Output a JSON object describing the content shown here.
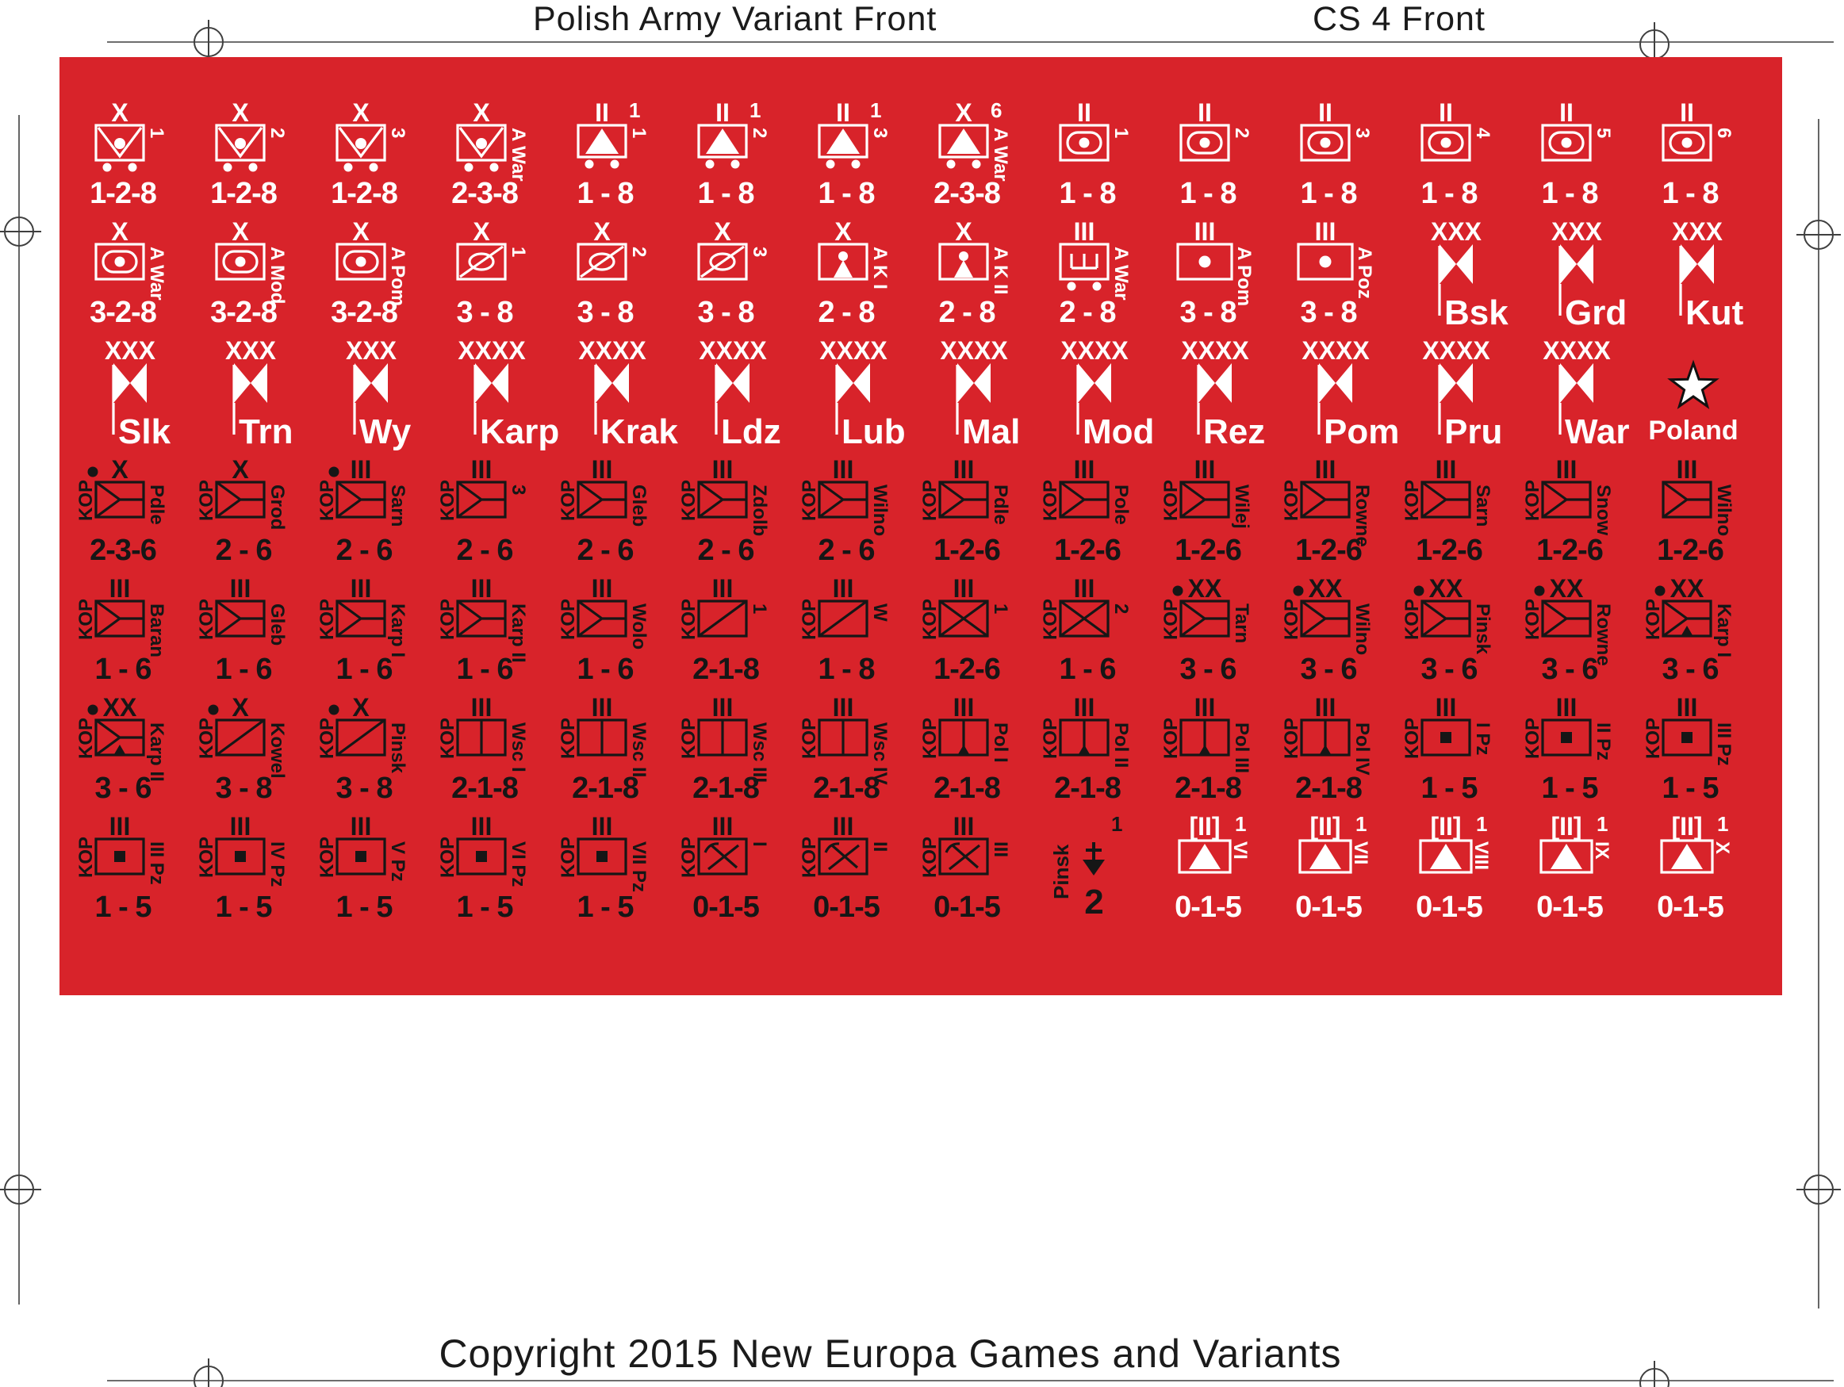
{
  "page": {
    "title": "Polish Army Variant Front",
    "sheet_code": "CS 4 Front",
    "copyright": "Copyright 2015 New Europa Games and Variants",
    "colors": {
      "sheet_red": "#D8232A",
      "ink_white": "#FFFFFF",
      "ink_black": "#161616",
      "reg_line": "#3f3f3f"
    }
  },
  "rows": [
    {
      "ink": "white",
      "counters": [
        {
          "sym": "motcav",
          "size": "X",
          "label": "1",
          "values": "1-2-8"
        },
        {
          "sym": "motcav",
          "size": "X",
          "label": "2",
          "values": "1-2-8"
        },
        {
          "sym": "motcav",
          "size": "X",
          "label": "3",
          "values": "1-2-8"
        },
        {
          "sym": "motcav",
          "size": "X",
          "label": "A War",
          "values": "2-3-8"
        },
        {
          "sym": "triwheels",
          "size": "II",
          "label": "1",
          "sup": "1",
          "values": "1 - 8"
        },
        {
          "sym": "triwheels",
          "size": "II",
          "label": "2",
          "sup": "1",
          "values": "1 - 8"
        },
        {
          "sym": "triwheels",
          "size": "II",
          "label": "3",
          "sup": "1",
          "values": "1 - 8"
        },
        {
          "sym": "triwheels",
          "size": "X",
          "label": "A War",
          "sup": "6",
          "values": "2-3-8"
        },
        {
          "sym": "recon",
          "size": "II",
          "label": "1",
          "values": "1 - 8"
        },
        {
          "sym": "recon",
          "size": "II",
          "label": "2",
          "values": "1 - 8"
        },
        {
          "sym": "recon",
          "size": "II",
          "label": "3",
          "values": "1 - 8"
        },
        {
          "sym": "recon",
          "size": "II",
          "label": "4",
          "values": "1 - 8"
        },
        {
          "sym": "recon",
          "size": "II",
          "label": "5",
          "values": "1 - 8"
        },
        {
          "sym": "recon",
          "size": "II",
          "label": "6",
          "values": "1 - 8"
        }
      ]
    },
    {
      "ink": "white",
      "counters": [
        {
          "sym": "recon",
          "size": "X",
          "label": "A War",
          "values": "3-2-8"
        },
        {
          "sym": "recon",
          "size": "X",
          "label": "A Mod",
          "values": "3-2-8"
        },
        {
          "sym": "recon",
          "size": "X",
          "label": "A Pom",
          "values": "3-2-8"
        },
        {
          "sym": "cavoval",
          "size": "X",
          "label": "1",
          "values": "3 - 8"
        },
        {
          "sym": "cavoval",
          "size": "X",
          "label": "2",
          "values": "3 - 8"
        },
        {
          "sym": "cavoval",
          "size": "X",
          "label": "3",
          "values": "3 - 8"
        },
        {
          "sym": "person",
          "size": "X",
          "label": "A K I",
          "values": "2 - 8"
        },
        {
          "sym": "person",
          "size": "X",
          "label": "A K II",
          "values": "2 - 8"
        },
        {
          "sym": "engr",
          "size": "III",
          "label": "A War",
          "values": "2 - 8"
        },
        {
          "sym": "art",
          "size": "III",
          "label": "A Pom",
          "values": "3 - 8"
        },
        {
          "sym": "art",
          "size": "III",
          "label": "A Poz",
          "values": "3 - 8"
        },
        {
          "sym": "flag",
          "size": "XXX",
          "name": "Bsk"
        },
        {
          "sym": "flag",
          "size": "XXX",
          "name": "Grd"
        },
        {
          "sym": "flag",
          "size": "XXX",
          "name": "Kut"
        }
      ]
    },
    {
      "ink": "white",
      "counters": [
        {
          "sym": "flag",
          "size": "XXX",
          "name": "Slk"
        },
        {
          "sym": "flag",
          "size": "XXX",
          "name": "Trn"
        },
        {
          "sym": "flag",
          "size": "XXX",
          "name": "Wy"
        },
        {
          "sym": "flag",
          "size": "XXXX",
          "name": "Karp"
        },
        {
          "sym": "flag",
          "size": "XXXX",
          "name": "Krak"
        },
        {
          "sym": "flag",
          "size": "XXXX",
          "name": "Ldz"
        },
        {
          "sym": "flag",
          "size": "XXXX",
          "name": "Lub"
        },
        {
          "sym": "flag",
          "size": "XXXX",
          "name": "Mal"
        },
        {
          "sym": "flag",
          "size": "XXXX",
          "name": "Mod"
        },
        {
          "sym": "flag",
          "size": "XXXX",
          "name": "Rez"
        },
        {
          "sym": "flag",
          "size": "XXXX",
          "name": "Pom"
        },
        {
          "sym": "flag",
          "size": "XXXX",
          "name": "Pru"
        },
        {
          "sym": "flag",
          "size": "XXXX",
          "name": "War"
        },
        {
          "sym": "star",
          "name": "Poland"
        }
      ]
    },
    {
      "ink": "black",
      "counters": [
        {
          "sym": "kopy",
          "size": "X",
          "label": "Pdle",
          "kop": true,
          "dot": true,
          "values": "2-3-6"
        },
        {
          "sym": "kopy",
          "size": "X",
          "label": "Grod",
          "kop": true,
          "values": "2 - 6"
        },
        {
          "sym": "kopy",
          "size": "III",
          "label": "Sarn",
          "kop": true,
          "dot": true,
          "values": "2 - 6"
        },
        {
          "sym": "kopy",
          "size": "III",
          "label": "3",
          "kop": true,
          "values": "2 - 6"
        },
        {
          "sym": "kopy",
          "size": "III",
          "label": "Gleb",
          "kop": true,
          "values": "2 - 6"
        },
        {
          "sym": "kopy",
          "size": "III",
          "label": "Zdolb",
          "kop": true,
          "values": "2 - 6"
        },
        {
          "sym": "kopy",
          "size": "III",
          "label": "Wilno",
          "kop": true,
          "values": "2 - 6"
        },
        {
          "sym": "kopy",
          "size": "III",
          "label": "Pdle",
          "kop": true,
          "values": "1-2-6"
        },
        {
          "sym": "kopy",
          "size": "III",
          "label": "Pole",
          "kop": true,
          "values": "1-2-6"
        },
        {
          "sym": "kopy",
          "size": "III",
          "label": "Wilej",
          "kop": true,
          "values": "1-2-6"
        },
        {
          "sym": "kopy",
          "size": "III",
          "label": "Rowne",
          "kop": true,
          "values": "1-2-6"
        },
        {
          "sym": "kopy",
          "size": "III",
          "label": "Sarn",
          "kop": true,
          "values": "1-2-6"
        },
        {
          "sym": "kopy",
          "size": "III",
          "label": "Snow",
          "kop": true,
          "values": "1-2-6"
        },
        {
          "sym": "kopy",
          "size": "III",
          "label": "Wilno",
          "values": "1-2-6"
        }
      ]
    },
    {
      "ink": "black",
      "counters": [
        {
          "sym": "kopy",
          "size": "III",
          "label": "Baran",
          "kop": true,
          "values": "1 - 6"
        },
        {
          "sym": "kopy",
          "size": "III",
          "label": "Gleb",
          "kop": true,
          "values": "1 - 6"
        },
        {
          "sym": "kopy",
          "size": "III",
          "label": "Karp I",
          "kop": true,
          "values": "1 - 6"
        },
        {
          "sym": "kopy",
          "size": "III",
          "label": "Karp II",
          "kop": true,
          "values": "1 - 6"
        },
        {
          "sym": "kopy",
          "size": "III",
          "label": "Wolo",
          "kop": true,
          "values": "1 - 6"
        },
        {
          "sym": "cav",
          "size": "III",
          "label": "1",
          "kop": true,
          "values": "2-1-8"
        },
        {
          "sym": "cav",
          "size": "III",
          "label": "W",
          "kop": true,
          "values": "1 - 8"
        },
        {
          "sym": "infx",
          "size": "III",
          "label": "1",
          "kop": true,
          "values": "1-2-6"
        },
        {
          "sym": "infx",
          "size": "III",
          "label": "2",
          "kop": true,
          "values": "1 - 6"
        },
        {
          "sym": "kopy",
          "size": "XX",
          "label": "Tarn",
          "kop": true,
          "dot": true,
          "values": "3 - 6"
        },
        {
          "sym": "kopy",
          "size": "XX",
          "label": "Wilno",
          "kop": true,
          "dot": true,
          "values": "3 - 6"
        },
        {
          "sym": "kopy",
          "size": "XX",
          "label": "Pinsk",
          "kop": true,
          "dot": true,
          "values": "3 - 6"
        },
        {
          "sym": "kopy",
          "size": "XX",
          "label": "Rowne",
          "kop": true,
          "dot": true,
          "values": "3 - 6"
        },
        {
          "sym": "kopymtn",
          "size": "XX",
          "label": "Karp I",
          "kop": true,
          "dot": true,
          "values": "3 - 6"
        }
      ]
    },
    {
      "ink": "black",
      "counters": [
        {
          "sym": "kopymtn",
          "size": "XX",
          "label": "Karp II",
          "kop": true,
          "dot": true,
          "values": "3 - 6"
        },
        {
          "sym": "cav",
          "size": "X",
          "label": "Kowel",
          "kop": true,
          "dot": true,
          "values": "3 - 8"
        },
        {
          "sym": "cav",
          "size": "X",
          "label": "Pinsk",
          "kop": true,
          "dot": true,
          "values": "3 - 8"
        },
        {
          "sym": "vert",
          "size": "III",
          "label": "Wsc I",
          "kop": true,
          "values": "2-1-8"
        },
        {
          "sym": "vert",
          "size": "III",
          "label": "Wsc II",
          "kop": true,
          "values": "2-1-8"
        },
        {
          "sym": "vert",
          "size": "III",
          "label": "Wsc III",
          "kop": true,
          "values": "2-1-8"
        },
        {
          "sym": "vert",
          "size": "III",
          "label": "Wsc IV",
          "kop": true,
          "values": "2-1-8"
        },
        {
          "sym": "vertmtn",
          "size": "III",
          "label": "Pol I",
          "kop": true,
          "values": "2-1-8"
        },
        {
          "sym": "vertmtn",
          "size": "III",
          "label": "Pol II",
          "kop": true,
          "values": "2-1-8"
        },
        {
          "sym": "vertmtn",
          "size": "III",
          "label": "Pol III",
          "kop": true,
          "values": "2-1-8"
        },
        {
          "sym": "vertmtn",
          "size": "III",
          "label": "Pol IV",
          "kop": true,
          "values": "2-1-8"
        },
        {
          "sym": "pz",
          "size": "III",
          "label": "I Pz",
          "kop": true,
          "values": "1 - 5"
        },
        {
          "sym": "pz",
          "size": "III",
          "label": "II Pz",
          "kop": true,
          "values": "1 - 5"
        },
        {
          "sym": "pz",
          "size": "III",
          "label": "III Pz",
          "kop": true,
          "values": "1 - 5"
        }
      ]
    },
    {
      "ink": "black",
      "counters": [
        {
          "sym": "pz",
          "size": "III",
          "label": "III Pz",
          "kop": true,
          "values": "1 - 5"
        },
        {
          "sym": "pz",
          "size": "III",
          "label": "IV Pz",
          "kop": true,
          "values": "1 - 5"
        },
        {
          "sym": "pz",
          "size": "III",
          "label": "V Pz",
          "kop": true,
          "values": "1 - 5"
        },
        {
          "sym": "pz",
          "size": "III",
          "label": "VI Pz",
          "kop": true,
          "values": "1 - 5"
        },
        {
          "sym": "pz",
          "size": "III",
          "label": "VII Pz",
          "kop": true,
          "values": "1 - 5"
        },
        {
          "sym": "pick",
          "size": "III",
          "label": "I",
          "kop": true,
          "values": "0-1-5"
        },
        {
          "sym": "pick",
          "size": "III",
          "label": "II",
          "kop": true,
          "values": "0-1-5"
        },
        {
          "sym": "pick",
          "size": "III",
          "label": "III",
          "kop": true,
          "values": "0-1-5"
        },
        {
          "sym": "anchor",
          "label": "Pinsk",
          "sup": "1",
          "values": "2"
        },
        {
          "sym": "tri",
          "size": "[II]",
          "label": "VI",
          "sup": "1",
          "values": "0-1-5",
          "ink": "white"
        },
        {
          "sym": "tri",
          "size": "[II]",
          "label": "VII",
          "sup": "1",
          "values": "0-1-5",
          "ink": "white"
        },
        {
          "sym": "tri",
          "size": "[II]",
          "label": "VIII",
          "sup": "1",
          "values": "0-1-5",
          "ink": "white"
        },
        {
          "sym": "tri",
          "size": "[II]",
          "label": "IX",
          "sup": "1",
          "values": "0-1-5",
          "ink": "white"
        },
        {
          "sym": "tri",
          "size": "[II]",
          "label": "X",
          "sup": "1",
          "values": "0-1-5",
          "ink": "white"
        }
      ]
    }
  ]
}
